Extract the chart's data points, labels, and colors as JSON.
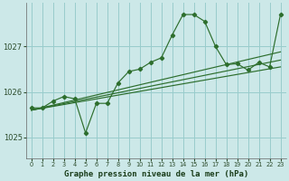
{
  "title": "Graphe pression niveau de la mer (hPa)",
  "bg_color": "#cce8e8",
  "grid_color": "#99cccc",
  "line_color": "#2d6e2d",
  "x_ticks": [
    0,
    1,
    2,
    3,
    4,
    5,
    6,
    7,
    8,
    9,
    10,
    11,
    12,
    13,
    14,
    15,
    16,
    17,
    18,
    19,
    20,
    21,
    22,
    23
  ],
  "y_ticks": [
    1025,
    1026,
    1027
  ],
  "ylim": [
    1024.55,
    1027.95
  ],
  "xlim": [
    -0.5,
    23.5
  ],
  "series1": [
    1025.65,
    1025.65,
    1025.8,
    1025.9,
    1025.85,
    1025.1,
    1025.75,
    1025.75,
    1026.2,
    1026.45,
    1026.5,
    1026.65,
    1026.75,
    1027.25,
    1027.7,
    1027.7,
    1027.55,
    1027.0,
    1026.6,
    1026.62,
    1026.48,
    1026.65,
    1026.55,
    1027.7
  ],
  "trend_lines": [
    [
      1025.6,
      1026.55
    ],
    [
      1025.6,
      1026.7
    ],
    [
      1025.6,
      1026.88
    ]
  ]
}
